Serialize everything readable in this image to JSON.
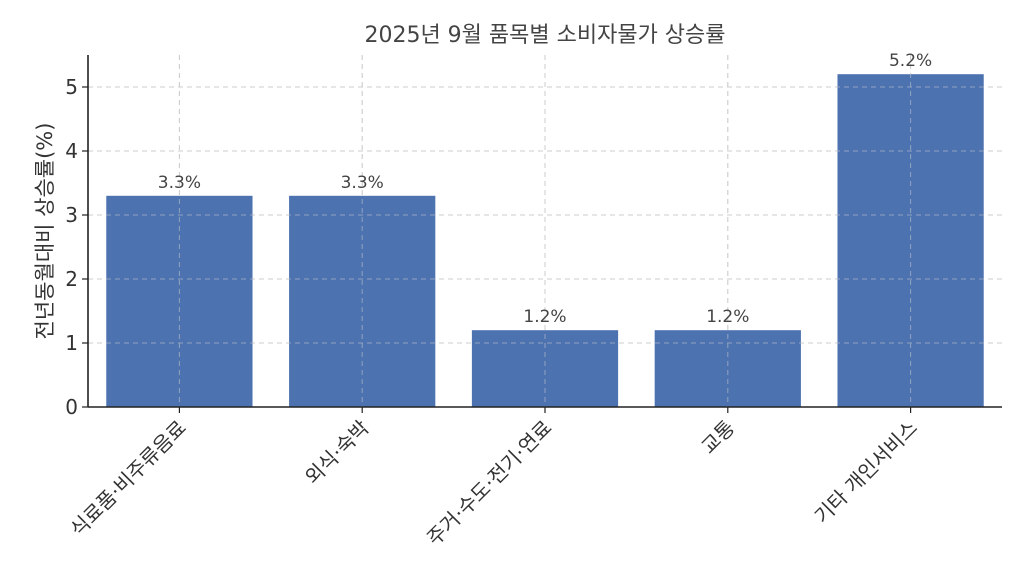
{
  "chart_data": {
    "type": "bar",
    "title": "2025년 9월 품목별 소비자물가 상승률",
    "xlabel": "",
    "ylabel": "전년동월대비 상승률(%)",
    "categories": [
      "식료품·비주류음료",
      "외식·숙박",
      "주거·수도·전기·연료",
      "교통",
      "기타 개인서비스"
    ],
    "values": [
      3.3,
      3.3,
      1.2,
      1.2,
      5.2
    ],
    "data_labels": [
      "3.3%",
      "3.3%",
      "1.2%",
      "1.2%",
      "5.2%"
    ],
    "ylim": [
      0,
      5.5
    ],
    "yticks": [
      0,
      1,
      2,
      3,
      4,
      5
    ],
    "grid": true,
    "bar_color": "#4c72b0"
  }
}
